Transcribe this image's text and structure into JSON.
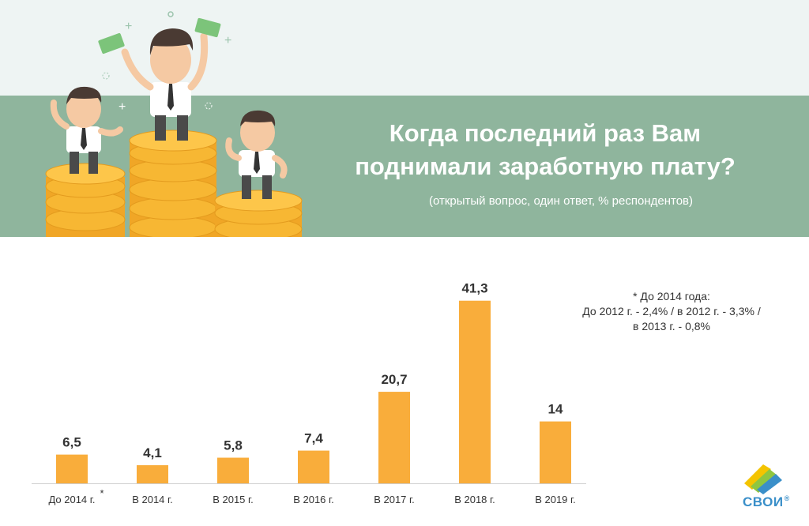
{
  "header": {
    "title_line1": "Когда последний раз Вам",
    "title_line2": "поднимали заработную плату?",
    "subtitle": "(открытый вопрос, один ответ, % респондентов)"
  },
  "footnote": {
    "line1": "* До 2014 года:",
    "line2": "До 2012 г. - 2,4% / в 2012 г. - 3,3% /",
    "line3": "в 2013 г. - 0,8%"
  },
  "chart_data": {
    "type": "bar",
    "categories": [
      "До 2014 г.",
      "В 2014 г.",
      "В 2015 г.",
      "В 2016 г.",
      "В 2017 г.",
      "В 2018 г.",
      "В 2019 г."
    ],
    "values": [
      6.5,
      4.1,
      5.8,
      7.4,
      20.7,
      41.3,
      14
    ],
    "value_labels": [
      "6,5",
      "4,1",
      "5,8",
      "7,4",
      "20,7",
      "41,3",
      "14"
    ],
    "category_markers": [
      "*",
      "",
      "",
      "",
      "",
      "",
      ""
    ],
    "ylim": [
      0,
      45
    ],
    "bar_color": "#f9ad3b",
    "grid": false
  },
  "logo": {
    "text": "СВОИ",
    "mark": "®",
    "colors": [
      "#f4c400",
      "#8fc640",
      "#3a8fc9"
    ]
  }
}
